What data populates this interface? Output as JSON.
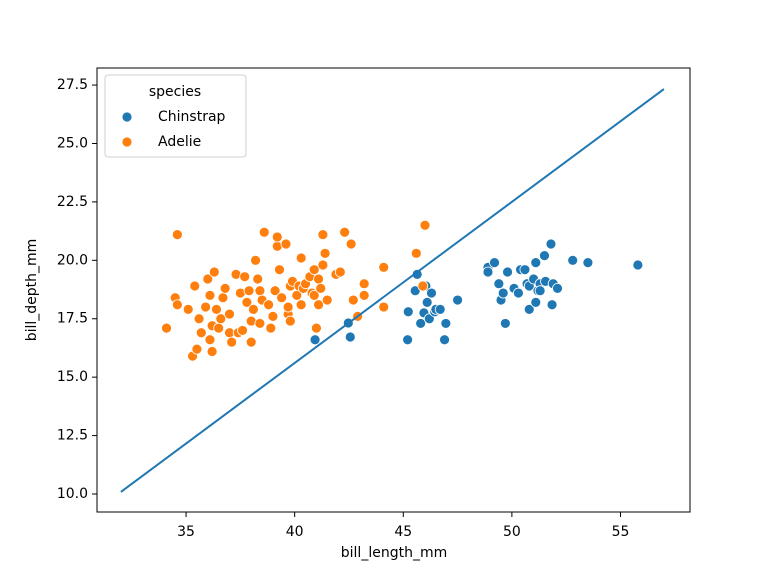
{
  "chart_data": {
    "type": "scatter",
    "x_label": "bill_length_mm",
    "y_label": "bill_depth_mm",
    "legend_title": "species",
    "legend": "upper left",
    "xlim": [
      30.9,
      58.2
    ],
    "ylim": [
      9.23,
      28.23
    ],
    "xticks": [
      35,
      40,
      45,
      50,
      55
    ],
    "yticks": [
      {
        "value": 10,
        "label": "10.0"
      },
      12.5,
      {
        "value": 15,
        "label": "15.0"
      },
      17.5,
      {
        "value": 20,
        "label": "20.0"
      },
      22.5,
      {
        "value": 25,
        "label": "25.0"
      },
      27.5
    ],
    "series": [
      {
        "name": "Chinstrap",
        "color": "#1f77b4",
        "x": [
          42.47,
          42.56,
          40.94,
          45.23,
          45.55,
          45.64,
          45.2,
          45.8,
          45.95,
          46.04,
          46.1,
          46.2,
          46.3,
          46.45,
          46.5,
          46.7,
          46.9,
          46.96,
          47.5,
          48.9,
          48.9,
          49.2,
          49.4,
          49.5,
          49.6,
          49.7,
          49.8,
          50.1,
          50.3,
          50.4,
          50.6,
          50.7,
          50.8,
          50.8,
          51.0,
          51.1,
          51.1,
          51.2,
          51.3,
          51.3,
          51.5,
          51.55,
          51.8,
          51.85,
          51.9,
          52.1,
          52.8,
          53.5,
          55.8
        ],
        "values": [
          17.32,
          16.72,
          16.6,
          17.8,
          18.7,
          19.4,
          16.6,
          17.3,
          17.75,
          18.9,
          18.2,
          17.5,
          18.6,
          17.8,
          17.9,
          17.9,
          16.6,
          17.3,
          18.3,
          19.7,
          19.5,
          19.9,
          19.0,
          18.3,
          18.6,
          17.3,
          19.5,
          18.8,
          18.6,
          19.6,
          19.6,
          19.0,
          18.9,
          17.9,
          19.2,
          19.9,
          18.2,
          18.7,
          19.0,
          18.7,
          20.2,
          19.1,
          20.7,
          18.1,
          19.0,
          18.8,
          20.0,
          19.9,
          19.8
        ]
      },
      {
        "name": "Adelie",
        "color": "#ff7f0e",
        "x": [
          34.1,
          34.5,
          34.6,
          34.6,
          35.1,
          35.3,
          35.4,
          35.5,
          35.6,
          35.7,
          35.9,
          36.0,
          36.1,
          36.1,
          36.2,
          36.2,
          36.3,
          36.4,
          36.5,
          36.6,
          36.7,
          36.8,
          37.0,
          37.0,
          37.1,
          37.3,
          37.4,
          37.5,
          37.6,
          37.7,
          37.8,
          37.9,
          38.0,
          38.0,
          38.1,
          38.2,
          38.3,
          38.4,
          38.4,
          38.5,
          38.6,
          38.8,
          38.9,
          39.0,
          39.1,
          39.2,
          39.2,
          39.3,
          39.4,
          39.6,
          39.7,
          39.7,
          39.8,
          39.8,
          39.9,
          40.1,
          40.2,
          40.3,
          40.3,
          40.4,
          40.5,
          40.7,
          40.8,
          40.9,
          40.9,
          41.0,
          41.1,
          41.1,
          41.2,
          41.3,
          41.3,
          41.4,
          41.5,
          41.9,
          42.1,
          42.3,
          42.6,
          42.7,
          42.9,
          43.2,
          43.2,
          44.1,
          44.1,
          45.6,
          45.9,
          46.0
        ],
        "values": [
          17.1,
          18.4,
          21.1,
          18.1,
          17.9,
          15.9,
          18.9,
          16.2,
          17.5,
          16.9,
          18.0,
          19.2,
          18.5,
          16.6,
          17.2,
          16.1,
          19.5,
          17.9,
          17.1,
          17.5,
          18.4,
          18.8,
          17.7,
          16.9,
          16.5,
          19.4,
          16.9,
          18.6,
          17.0,
          19.3,
          18.2,
          18.7,
          17.4,
          16.5,
          17.9,
          20.0,
          19.2,
          18.7,
          17.3,
          18.3,
          21.2,
          18.1,
          17.1,
          17.6,
          18.7,
          20.6,
          21.0,
          19.6,
          18.4,
          20.7,
          17.7,
          18.0,
          18.9,
          17.4,
          19.1,
          18.5,
          18.9,
          20.1,
          18.1,
          18.8,
          19.0,
          19.3,
          18.6,
          19.6,
          18.5,
          17.1,
          19.2,
          18.1,
          18.8,
          19.8,
          21.1,
          20.3,
          18.3,
          19.4,
          19.5,
          21.2,
          20.7,
          18.3,
          17.6,
          19.0,
          18.5,
          19.7,
          18.0,
          20.3,
          18.9,
          21.5
        ]
      },
      {
        "type": "line",
        "color": "#1f77b4",
        "x": [
          32,
          57
        ],
        "values": [
          10.09,
          27.33
        ]
      }
    ]
  }
}
